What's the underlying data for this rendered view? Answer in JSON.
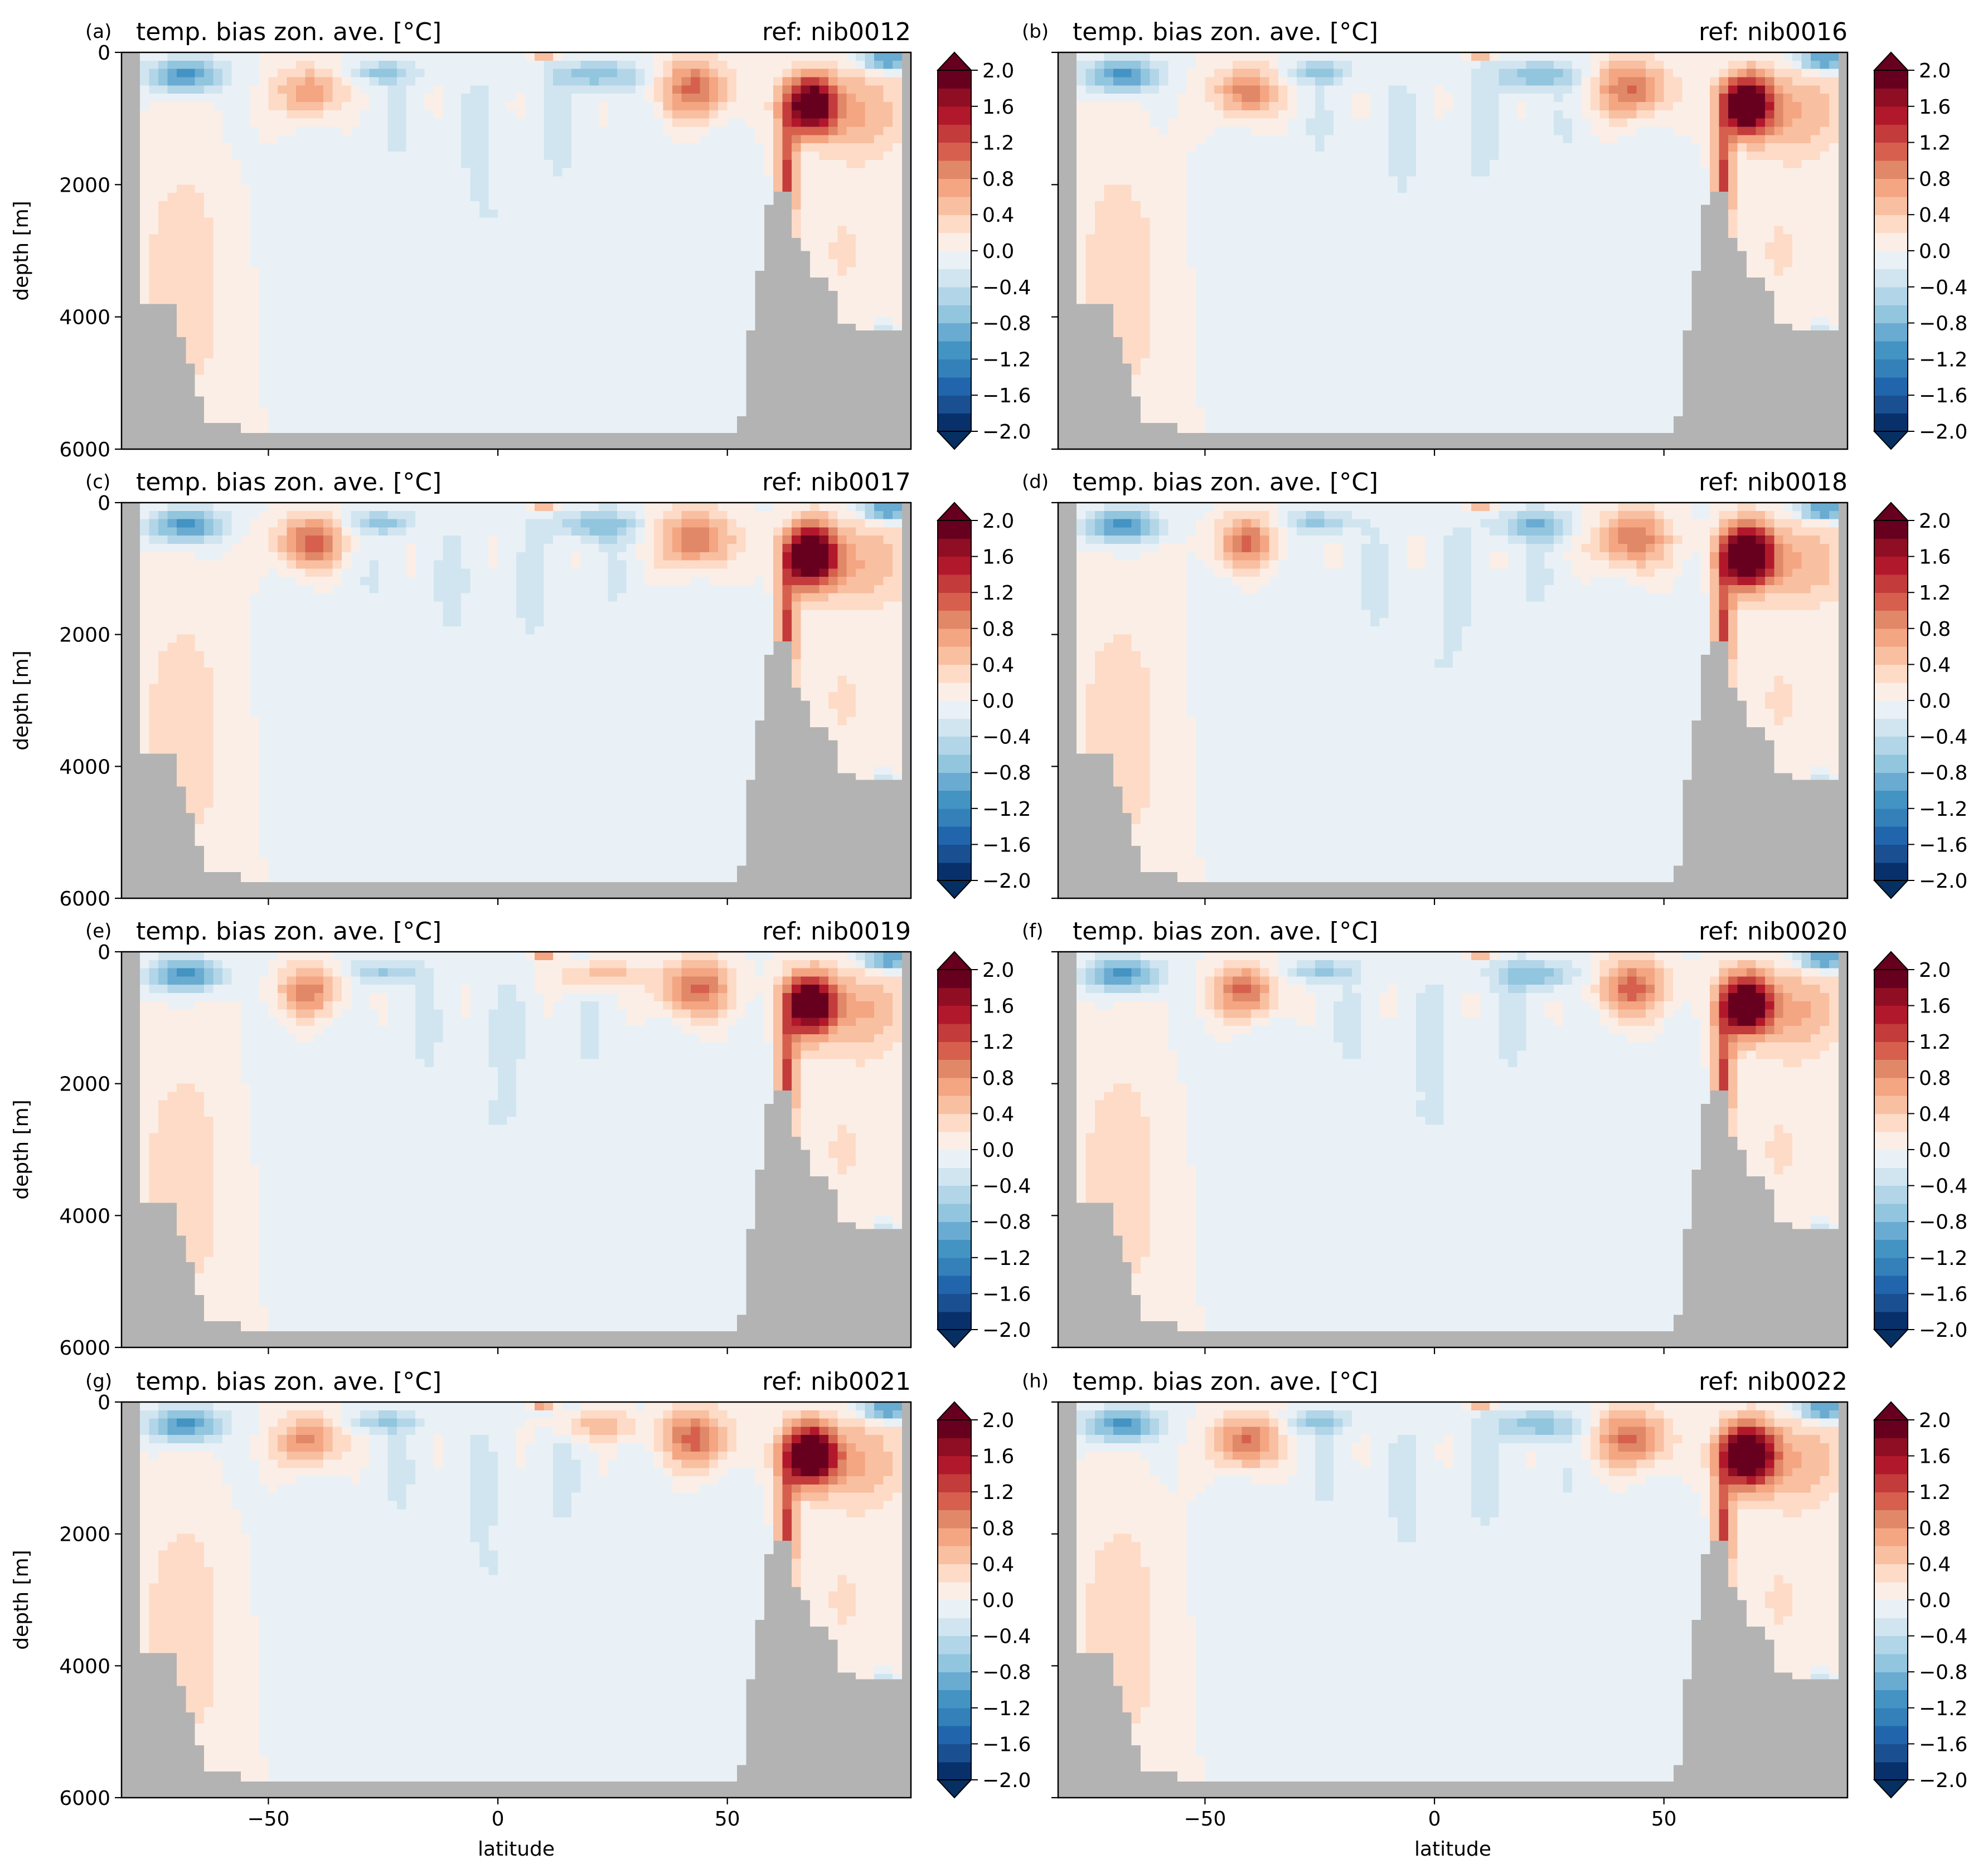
{
  "figure": {
    "xlabel": "latitude",
    "ylabel": "depth [m]"
  },
  "colormap": {
    "name": "RdBu_r",
    "levels": [
      -2.0,
      -1.8,
      -1.6,
      -1.4,
      -1.2,
      -1.0,
      -0.8,
      -0.6,
      -0.4,
      -0.2,
      0.0,
      0.2,
      0.4,
      0.6,
      0.8,
      1.0,
      1.2,
      1.4,
      1.6,
      1.8,
      2.0
    ],
    "tick_labels": [
      "2.0",
      "1.6",
      "1.2",
      "0.8",
      "0.4",
      "0.0",
      "−0.4",
      "−0.8",
      "−1.2",
      "−1.6",
      "−2.0"
    ],
    "extend": "both",
    "land_color": "#b3b3b3"
  },
  "axes_common": {
    "xlim": [
      -82,
      90
    ],
    "ylim": [
      6000,
      0
    ],
    "xticks": [
      -50,
      0,
      50
    ],
    "xtick_labels": [
      "−50",
      "0",
      "50"
    ],
    "yticks": [
      0,
      2000,
      4000,
      6000
    ],
    "ytick_labels": [
      "0",
      "2000",
      "4000",
      "6000"
    ]
  },
  "chart_data": [
    {
      "type": "heatmap",
      "panel": "(a)",
      "title": "temp. bias zon. ave. [°C]",
      "title_right": "ref: nib0012",
      "variant": 0
    },
    {
      "type": "heatmap",
      "panel": "(b)",
      "title": "temp. bias zon. ave. [°C]",
      "title_right": "ref: nib0016",
      "variant": 1
    },
    {
      "type": "heatmap",
      "panel": "(c)",
      "title": "temp. bias zon. ave. [°C]",
      "title_right": "ref: nib0017",
      "variant": 2
    },
    {
      "type": "heatmap",
      "panel": "(d)",
      "title": "temp. bias zon. ave. [°C]",
      "title_right": "ref: nib0018",
      "variant": 3
    },
    {
      "type": "heatmap",
      "panel": "(e)",
      "title": "temp. bias zon. ave. [°C]",
      "title_right": "ref: nib0019",
      "variant": 4
    },
    {
      "type": "heatmap",
      "panel": "(f)",
      "title": "temp. bias zon. ave. [°C]",
      "title_right": "ref: nib0020",
      "variant": 5
    },
    {
      "type": "heatmap",
      "panel": "(g)",
      "title": "temp. bias zon. ave. [°C]",
      "title_right": "ref: nib0021",
      "variant": 6
    },
    {
      "type": "heatmap",
      "panel": "(h)",
      "title": "temp. bias zon. ave. [°C]",
      "title_right": "ref: nib0022",
      "variant": 7
    }
  ]
}
